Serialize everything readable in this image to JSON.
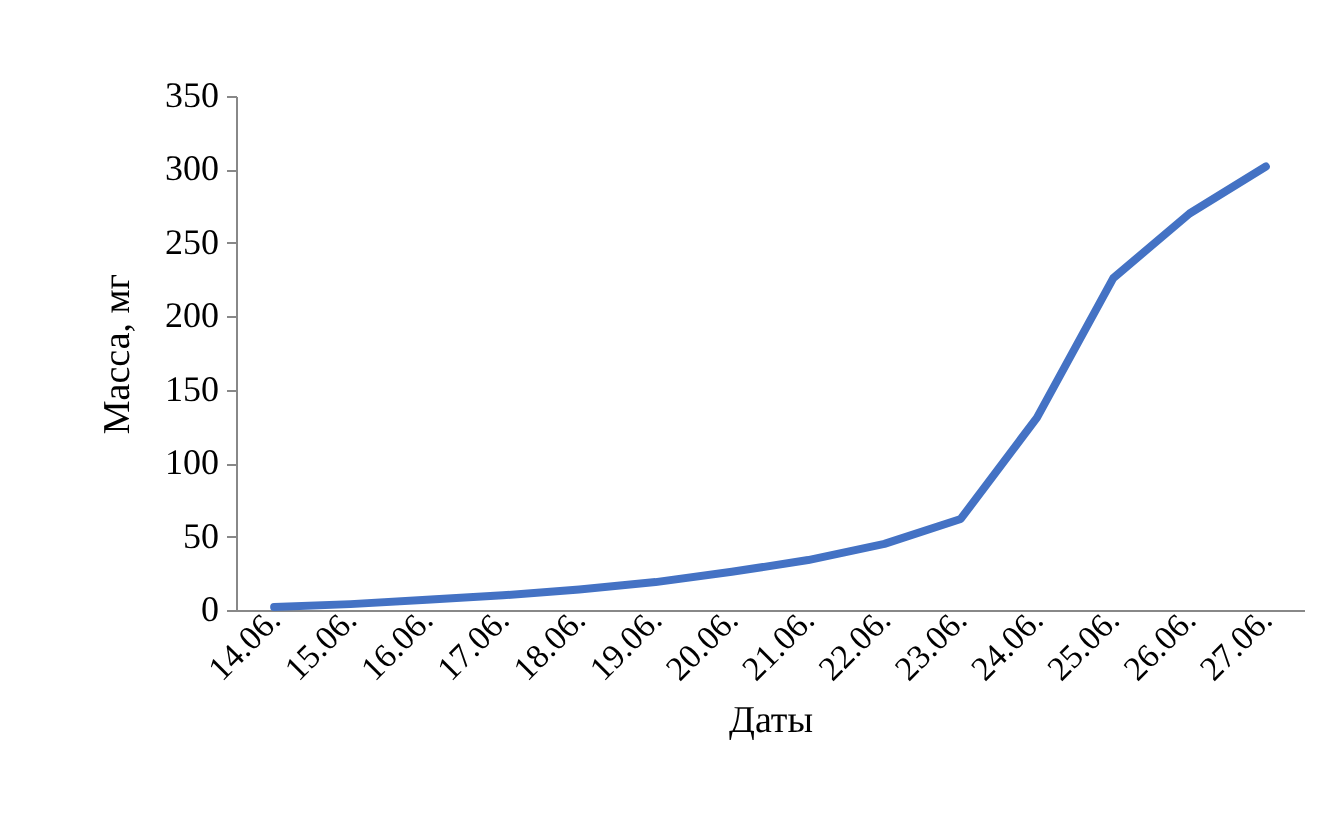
{
  "chart_data": {
    "type": "line",
    "xlabel": "Даты",
    "ylabel": "Масса, мг",
    "categories": [
      "14.06.",
      "15.06.",
      "16.06.",
      "17.06.",
      "18.06.",
      "19.06.",
      "20.06.",
      "21.06.",
      "22.06.",
      "23.06.",
      "24.06.",
      "25.06.",
      "26.06.",
      "27.06."
    ],
    "series": [
      {
        "color": "#4472c4",
        "values": [
          2,
          4,
          7,
          10,
          14,
          19,
          26,
          34,
          45,
          62,
          131,
          226,
          270,
          302
        ]
      }
    ],
    "ylim": [
      0,
      350
    ],
    "yticks": [
      0,
      50,
      100,
      150,
      200,
      250,
      300,
      350
    ],
    "grid": false
  }
}
